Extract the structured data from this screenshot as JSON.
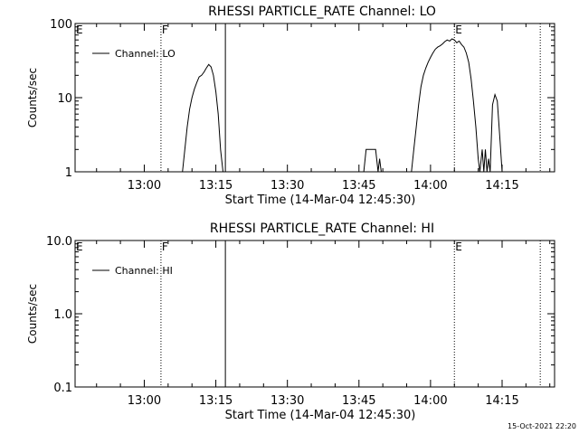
{
  "chart_data": [
    {
      "type": "line",
      "title": "RHESSI PARTICLE_RATE Channel: LO",
      "xlabel": "Start Time (14-Mar-04 12:45:30)",
      "ylabel": "Counts/sec",
      "y_scale": "log",
      "ylim": [
        1,
        100
      ],
      "xlim": [
        "12:45:30",
        "14:26:00"
      ],
      "x_ticks": [
        "13:00",
        "13:15",
        "13:30",
        "13:45",
        "14:00",
        "14:15"
      ],
      "y_ticks": [
        "1",
        "10",
        "100"
      ],
      "grid": false,
      "legend": {
        "placement": "top-left",
        "entries": [
          "Channel: LO"
        ]
      },
      "markers": [
        {
          "label": "E",
          "time": "12:45:30",
          "style": "dotted"
        },
        {
          "label": "F",
          "time": "13:03:30",
          "style": "dotted"
        },
        {
          "time": "13:17:00",
          "style": "solid"
        },
        {
          "label": "E",
          "time": "14:05:00",
          "style": "dotted"
        },
        {
          "time": "14:23:00",
          "style": "dotted"
        }
      ],
      "series": [
        {
          "name": "Channel: LO",
          "points": [
            [
              "13:08:00",
              1
            ],
            [
              "13:08:30",
              2
            ],
            [
              "13:09:00",
              4
            ],
            [
              "13:09:30",
              7
            ],
            [
              "13:10:00",
              10
            ],
            [
              "13:10:30",
              13
            ],
            [
              "13:11:00",
              16
            ],
            [
              "13:11:30",
              19
            ],
            [
              "13:12:00",
              20
            ],
            [
              "13:12:30",
              22
            ],
            [
              "13:13:00",
              25
            ],
            [
              "13:13:30",
              28
            ],
            [
              "13:14:00",
              26
            ],
            [
              "13:14:30",
              20
            ],
            [
              "13:15:00",
              12
            ],
            [
              "13:15:30",
              6
            ],
            [
              "13:16:00",
              2
            ],
            [
              "13:16:30",
              1
            ],
            [
              "13:46:00",
              1
            ],
            [
              "13:46:30",
              2
            ],
            [
              "13:48:30",
              2
            ],
            [
              "13:49:00",
              1
            ],
            [
              "13:49:20",
              1.5
            ],
            [
              "13:49:40",
              1
            ],
            [
              "13:56:00",
              1
            ],
            [
              "13:56:30",
              2
            ],
            [
              "13:57:00",
              4
            ],
            [
              "13:57:30",
              8
            ],
            [
              "13:58:00",
              14
            ],
            [
              "13:58:30",
              20
            ],
            [
              "13:59:00",
              25
            ],
            [
              "13:59:30",
              30
            ],
            [
              "14:00:00",
              35
            ],
            [
              "14:00:30",
              40
            ],
            [
              "14:01:00",
              45
            ],
            [
              "14:01:30",
              48
            ],
            [
              "14:02:00",
              50
            ],
            [
              "14:02:30",
              53
            ],
            [
              "14:03:00",
              57
            ],
            [
              "14:03:30",
              60
            ],
            [
              "14:04:00",
              58
            ],
            [
              "14:04:30",
              62
            ],
            [
              "14:05:00",
              60
            ],
            [
              "14:05:30",
              55
            ],
            [
              "14:06:00",
              58
            ],
            [
              "14:06:30",
              52
            ],
            [
              "14:07:00",
              48
            ],
            [
              "14:07:30",
              40
            ],
            [
              "14:08:00",
              30
            ],
            [
              "14:08:30",
              18
            ],
            [
              "14:09:00",
              9
            ],
            [
              "14:09:30",
              4
            ],
            [
              "14:10:00",
              1.5
            ],
            [
              "14:10:20",
              1
            ],
            [
              "14:10:50",
              2
            ],
            [
              "14:11:10",
              1
            ],
            [
              "14:11:30",
              2
            ],
            [
              "14:11:50",
              1
            ],
            [
              "14:12:10",
              1.5
            ],
            [
              "14:12:30",
              1
            ],
            [
              "14:13:00",
              8
            ],
            [
              "14:13:30",
              11
            ],
            [
              "14:14:00",
              9
            ],
            [
              "14:14:30",
              3
            ],
            [
              "14:15:00",
              1
            ]
          ]
        }
      ]
    },
    {
      "type": "line",
      "title": "RHESSI PARTICLE_RATE Channel: HI",
      "xlabel": "Start Time (14-Mar-04 12:45:30)",
      "ylabel": "Counts/sec",
      "y_scale": "log",
      "ylim": [
        0.1,
        10
      ],
      "xlim": [
        "12:45:30",
        "14:26:00"
      ],
      "x_ticks": [
        "13:00",
        "13:15",
        "13:30",
        "13:45",
        "14:00",
        "14:15"
      ],
      "y_ticks": [
        "0.1",
        "1.0",
        "10.0"
      ],
      "grid": false,
      "legend": {
        "placement": "top-left",
        "entries": [
          "Channel: HI"
        ]
      },
      "markers": [
        {
          "label": "E",
          "time": "12:45:30",
          "style": "dotted"
        },
        {
          "label": "F",
          "time": "13:03:30",
          "style": "dotted"
        },
        {
          "time": "13:17:00",
          "style": "solid"
        },
        {
          "label": "E",
          "time": "14:05:00",
          "style": "dotted"
        },
        {
          "time": "14:23:00",
          "style": "dotted"
        }
      ],
      "series": [
        {
          "name": "Channel: HI",
          "points": []
        }
      ]
    }
  ],
  "footer": {
    "timestamp": "15-Oct-2021 22:20"
  },
  "colors": {
    "line": "#000000",
    "background": "#ffffff"
  }
}
